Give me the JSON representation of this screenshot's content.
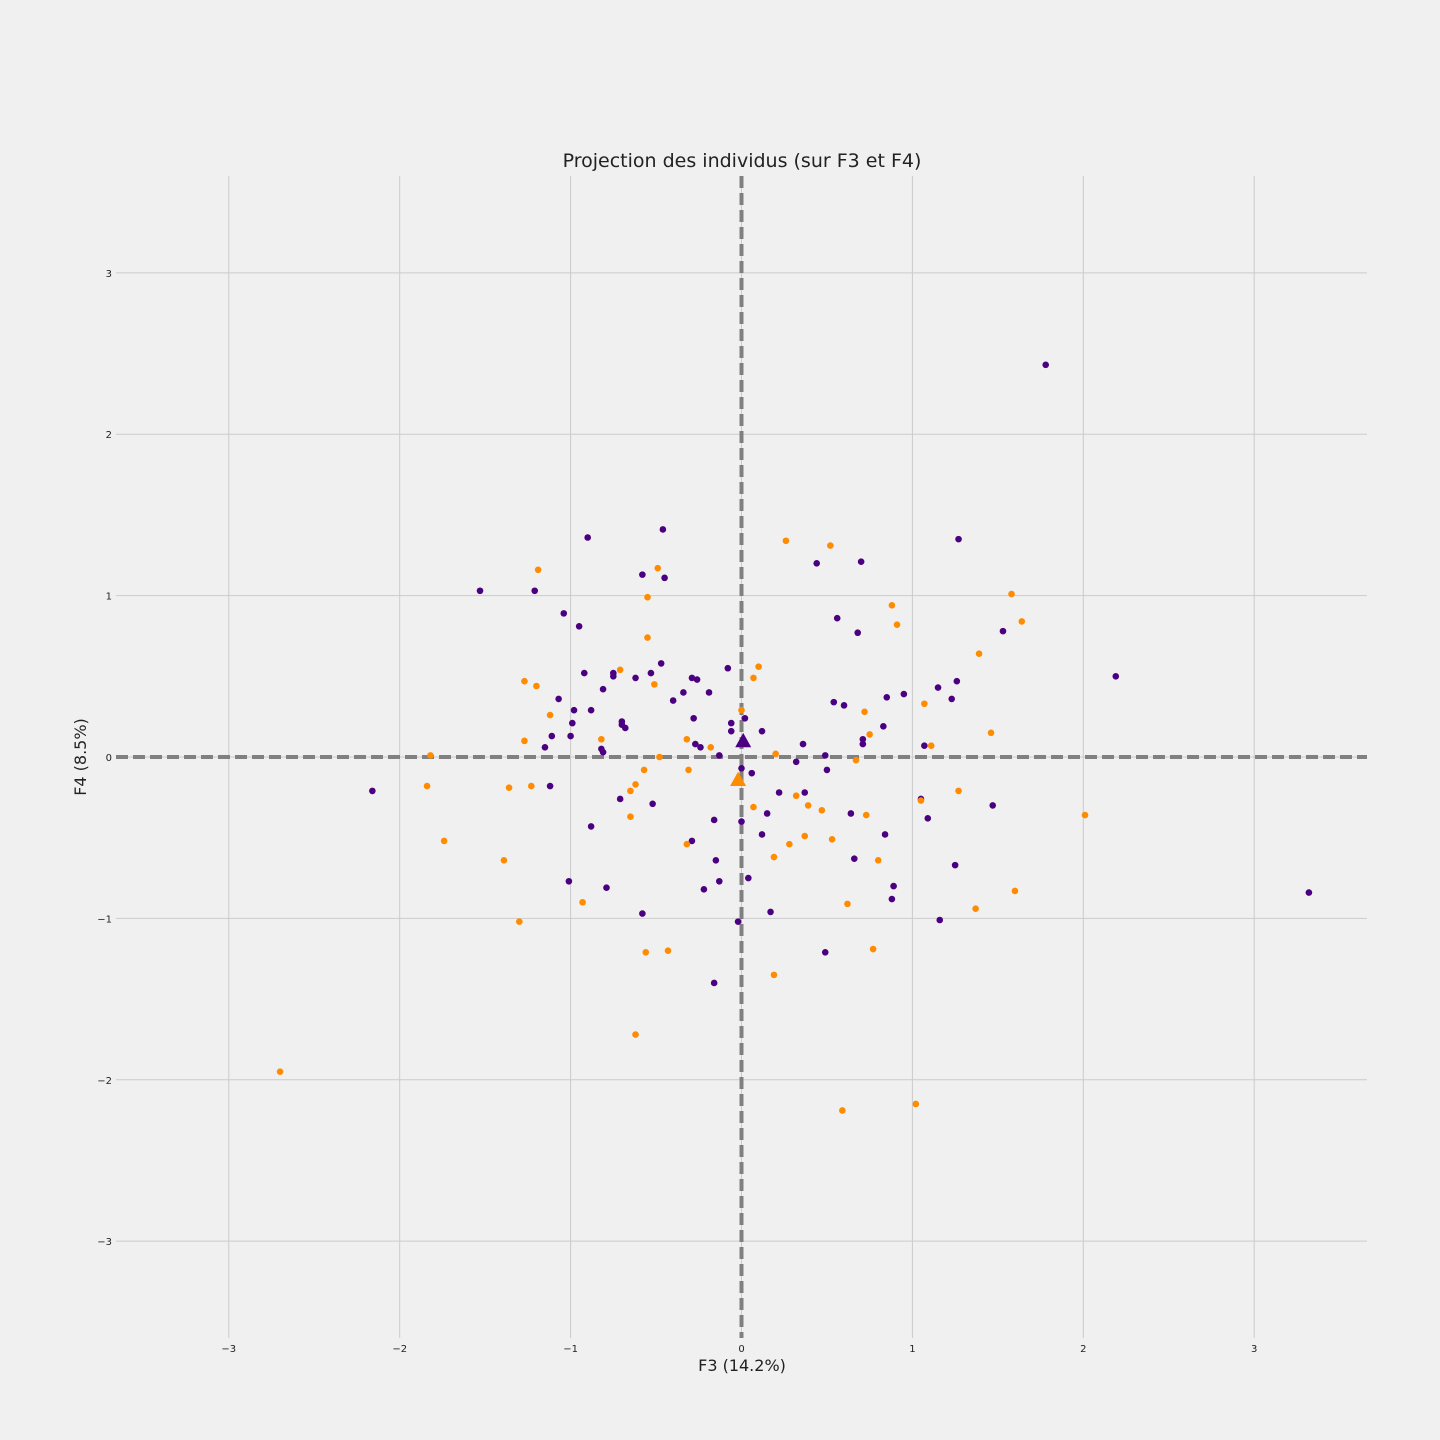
{
  "chart_data": {
    "type": "scatter",
    "title": "Projection des individus (sur F3 et F4)",
    "xlabel": "F3 (14.2%)",
    "ylabel": "F4 (8.5%)",
    "xlim": [
      -3.66,
      3.66
    ],
    "ylim": [
      -3.6,
      3.6
    ],
    "x_ticks": [
      -3,
      -2,
      -1,
      0,
      1,
      2,
      3
    ],
    "y_ticks": [
      -3,
      -2,
      -1,
      0,
      1,
      2,
      3
    ],
    "x_tick_labels": [
      "−3",
      "−2",
      "−1",
      "0",
      "1",
      "2",
      "3"
    ],
    "y_tick_labels": [
      "−3",
      "−2",
      "−1",
      "0",
      "1",
      "2",
      "3"
    ],
    "grid": true,
    "reference_lines": {
      "x": 0,
      "y": 0,
      "style": "dashed",
      "color": "#808080"
    },
    "colors": {
      "purple": "#4b0082",
      "orange": "#ff8c00",
      "grid": "#cbcbcb",
      "background": "#f0f0f0"
    },
    "series": [
      {
        "color": "#4b0082",
        "centroid": [
          0.01,
          0.1
        ],
        "points": [
          [
            1.78,
            2.43
          ],
          [
            1.27,
            1.35
          ],
          [
            0.7,
            1.21
          ],
          [
            0.44,
            1.2
          ],
          [
            -0.46,
            1.41
          ],
          [
            -0.9,
            1.36
          ],
          [
            -0.58,
            1.13
          ],
          [
            -0.45,
            1.11
          ],
          [
            -1.53,
            1.03
          ],
          [
            -1.21,
            1.03
          ],
          [
            -1.04,
            0.89
          ],
          [
            -0.95,
            0.81
          ],
          [
            0.56,
            0.86
          ],
          [
            0.68,
            0.77
          ],
          [
            1.53,
            0.78
          ],
          [
            2.19,
            0.5
          ],
          [
            1.26,
            0.47
          ],
          [
            1.15,
            0.43
          ],
          [
            1.23,
            0.36
          ],
          [
            0.95,
            0.39
          ],
          [
            0.85,
            0.37
          ],
          [
            0.54,
            0.34
          ],
          [
            0.6,
            0.32
          ],
          [
            -0.92,
            0.52
          ],
          [
            -0.75,
            0.52
          ],
          [
            -0.75,
            0.5
          ],
          [
            -0.62,
            0.49
          ],
          [
            -0.53,
            0.52
          ],
          [
            -0.47,
            0.58
          ],
          [
            -0.29,
            0.49
          ],
          [
            -0.26,
            0.48
          ],
          [
            -0.34,
            0.4
          ],
          [
            -0.19,
            0.4
          ],
          [
            -0.08,
            0.55
          ],
          [
            -0.81,
            0.42
          ],
          [
            -1.07,
            0.36
          ],
          [
            -0.98,
            0.29
          ],
          [
            -0.88,
            0.29
          ],
          [
            -0.4,
            0.35
          ],
          [
            -0.28,
            0.24
          ],
          [
            -0.99,
            0.21
          ],
          [
            -0.7,
            0.22
          ],
          [
            -0.7,
            0.2
          ],
          [
            -0.68,
            0.18
          ],
          [
            -1.0,
            0.13
          ],
          [
            -1.11,
            0.13
          ],
          [
            -1.15,
            0.06
          ],
          [
            -0.82,
            0.05
          ],
          [
            -0.81,
            0.03
          ],
          [
            -0.27,
            0.08
          ],
          [
            -0.24,
            0.06
          ],
          [
            -0.13,
            0.01
          ],
          [
            -0.06,
            0.21
          ],
          [
            -0.06,
            0.16
          ],
          [
            0.02,
            0.24
          ],
          [
            0.12,
            0.16
          ],
          [
            0.36,
            0.08
          ],
          [
            0.49,
            0.01
          ],
          [
            0.71,
            0.11
          ],
          [
            0.71,
            0.08
          ],
          [
            0.83,
            0.19
          ],
          [
            1.07,
            0.07
          ],
          [
            0.32,
            -0.03
          ],
          [
            0.5,
            -0.08
          ],
          [
            0.06,
            -0.1
          ],
          [
            0.0,
            -0.07
          ],
          [
            0.22,
            -0.22
          ],
          [
            0.37,
            -0.22
          ],
          [
            -1.12,
            -0.18
          ],
          [
            -2.16,
            -0.21
          ],
          [
            -0.71,
            -0.26
          ],
          [
            -0.52,
            -0.29
          ],
          [
            1.05,
            -0.26
          ],
          [
            1.47,
            -0.3
          ],
          [
            1.09,
            -0.38
          ],
          [
            0.15,
            -0.35
          ],
          [
            0.64,
            -0.35
          ],
          [
            -0.16,
            -0.39
          ],
          [
            0.0,
            -0.4
          ],
          [
            -0.88,
            -0.43
          ],
          [
            0.12,
            -0.48
          ],
          [
            0.84,
            -0.48
          ],
          [
            -0.29,
            -0.52
          ],
          [
            -0.15,
            -0.64
          ],
          [
            0.66,
            -0.63
          ],
          [
            1.25,
            -0.67
          ],
          [
            0.04,
            -0.75
          ],
          [
            -0.13,
            -0.77
          ],
          [
            -1.01,
            -0.77
          ],
          [
            -0.79,
            -0.81
          ],
          [
            -0.22,
            -0.82
          ],
          [
            0.89,
            -0.8
          ],
          [
            0.88,
            -0.88
          ],
          [
            3.32,
            -0.84
          ],
          [
            -0.58,
            -0.97
          ],
          [
            0.17,
            -0.96
          ],
          [
            -0.02,
            -1.02
          ],
          [
            1.16,
            -1.01
          ],
          [
            0.49,
            -1.21
          ],
          [
            -0.16,
            -1.4
          ]
        ]
      },
      {
        "color": "#ff8c00",
        "centroid": [
          -0.02,
          -0.14
        ],
        "points": [
          [
            0.26,
            1.34
          ],
          [
            0.52,
            1.31
          ],
          [
            -1.19,
            1.16
          ],
          [
            -0.49,
            1.17
          ],
          [
            -0.55,
            0.99
          ],
          [
            0.88,
            0.94
          ],
          [
            0.91,
            0.82
          ],
          [
            1.58,
            1.01
          ],
          [
            1.64,
            0.84
          ],
          [
            -0.55,
            0.74
          ],
          [
            1.39,
            0.64
          ],
          [
            0.1,
            0.56
          ],
          [
            0.07,
            0.49
          ],
          [
            -0.71,
            0.54
          ],
          [
            -1.27,
            0.47
          ],
          [
            -1.2,
            0.44
          ],
          [
            -0.51,
            0.45
          ],
          [
            1.07,
            0.33
          ],
          [
            0.72,
            0.28
          ],
          [
            0.0,
            0.29
          ],
          [
            -1.12,
            0.26
          ],
          [
            1.46,
            0.15
          ],
          [
            0.75,
            0.14
          ],
          [
            -1.27,
            0.1
          ],
          [
            -0.32,
            0.11
          ],
          [
            -0.82,
            0.11
          ],
          [
            -0.18,
            0.06
          ],
          [
            1.11,
            0.07
          ],
          [
            0.2,
            0.02
          ],
          [
            -1.82,
            0.01
          ],
          [
            -0.48,
            0.0
          ],
          [
            0.67,
            -0.02
          ],
          [
            -1.84,
            -0.18
          ],
          [
            -1.36,
            -0.19
          ],
          [
            -1.23,
            -0.18
          ],
          [
            -0.31,
            -0.08
          ],
          [
            -0.57,
            -0.08
          ],
          [
            -0.62,
            -0.17
          ],
          [
            -0.65,
            -0.21
          ],
          [
            1.27,
            -0.21
          ],
          [
            0.32,
            -0.24
          ],
          [
            1.05,
            -0.27
          ],
          [
            0.39,
            -0.3
          ],
          [
            0.07,
            -0.31
          ],
          [
            0.47,
            -0.33
          ],
          [
            0.73,
            -0.36
          ],
          [
            2.01,
            -0.36
          ],
          [
            -0.65,
            -0.37
          ],
          [
            -1.74,
            -0.52
          ],
          [
            0.37,
            -0.49
          ],
          [
            0.53,
            -0.51
          ],
          [
            -0.32,
            -0.54
          ],
          [
            0.28,
            -0.54
          ],
          [
            0.19,
            -0.62
          ],
          [
            0.8,
            -0.64
          ],
          [
            -1.39,
            -0.64
          ],
          [
            1.6,
            -0.83
          ],
          [
            -0.93,
            -0.9
          ],
          [
            0.62,
            -0.91
          ],
          [
            1.37,
            -0.94
          ],
          [
            -1.3,
            -1.02
          ],
          [
            -0.56,
            -1.21
          ],
          [
            -0.43,
            -1.2
          ],
          [
            0.77,
            -1.19
          ],
          [
            0.19,
            -1.35
          ],
          [
            -0.62,
            -1.72
          ],
          [
            -2.7,
            -1.95
          ],
          [
            1.02,
            -2.15
          ],
          [
            0.59,
            -2.19
          ]
        ]
      }
    ]
  }
}
